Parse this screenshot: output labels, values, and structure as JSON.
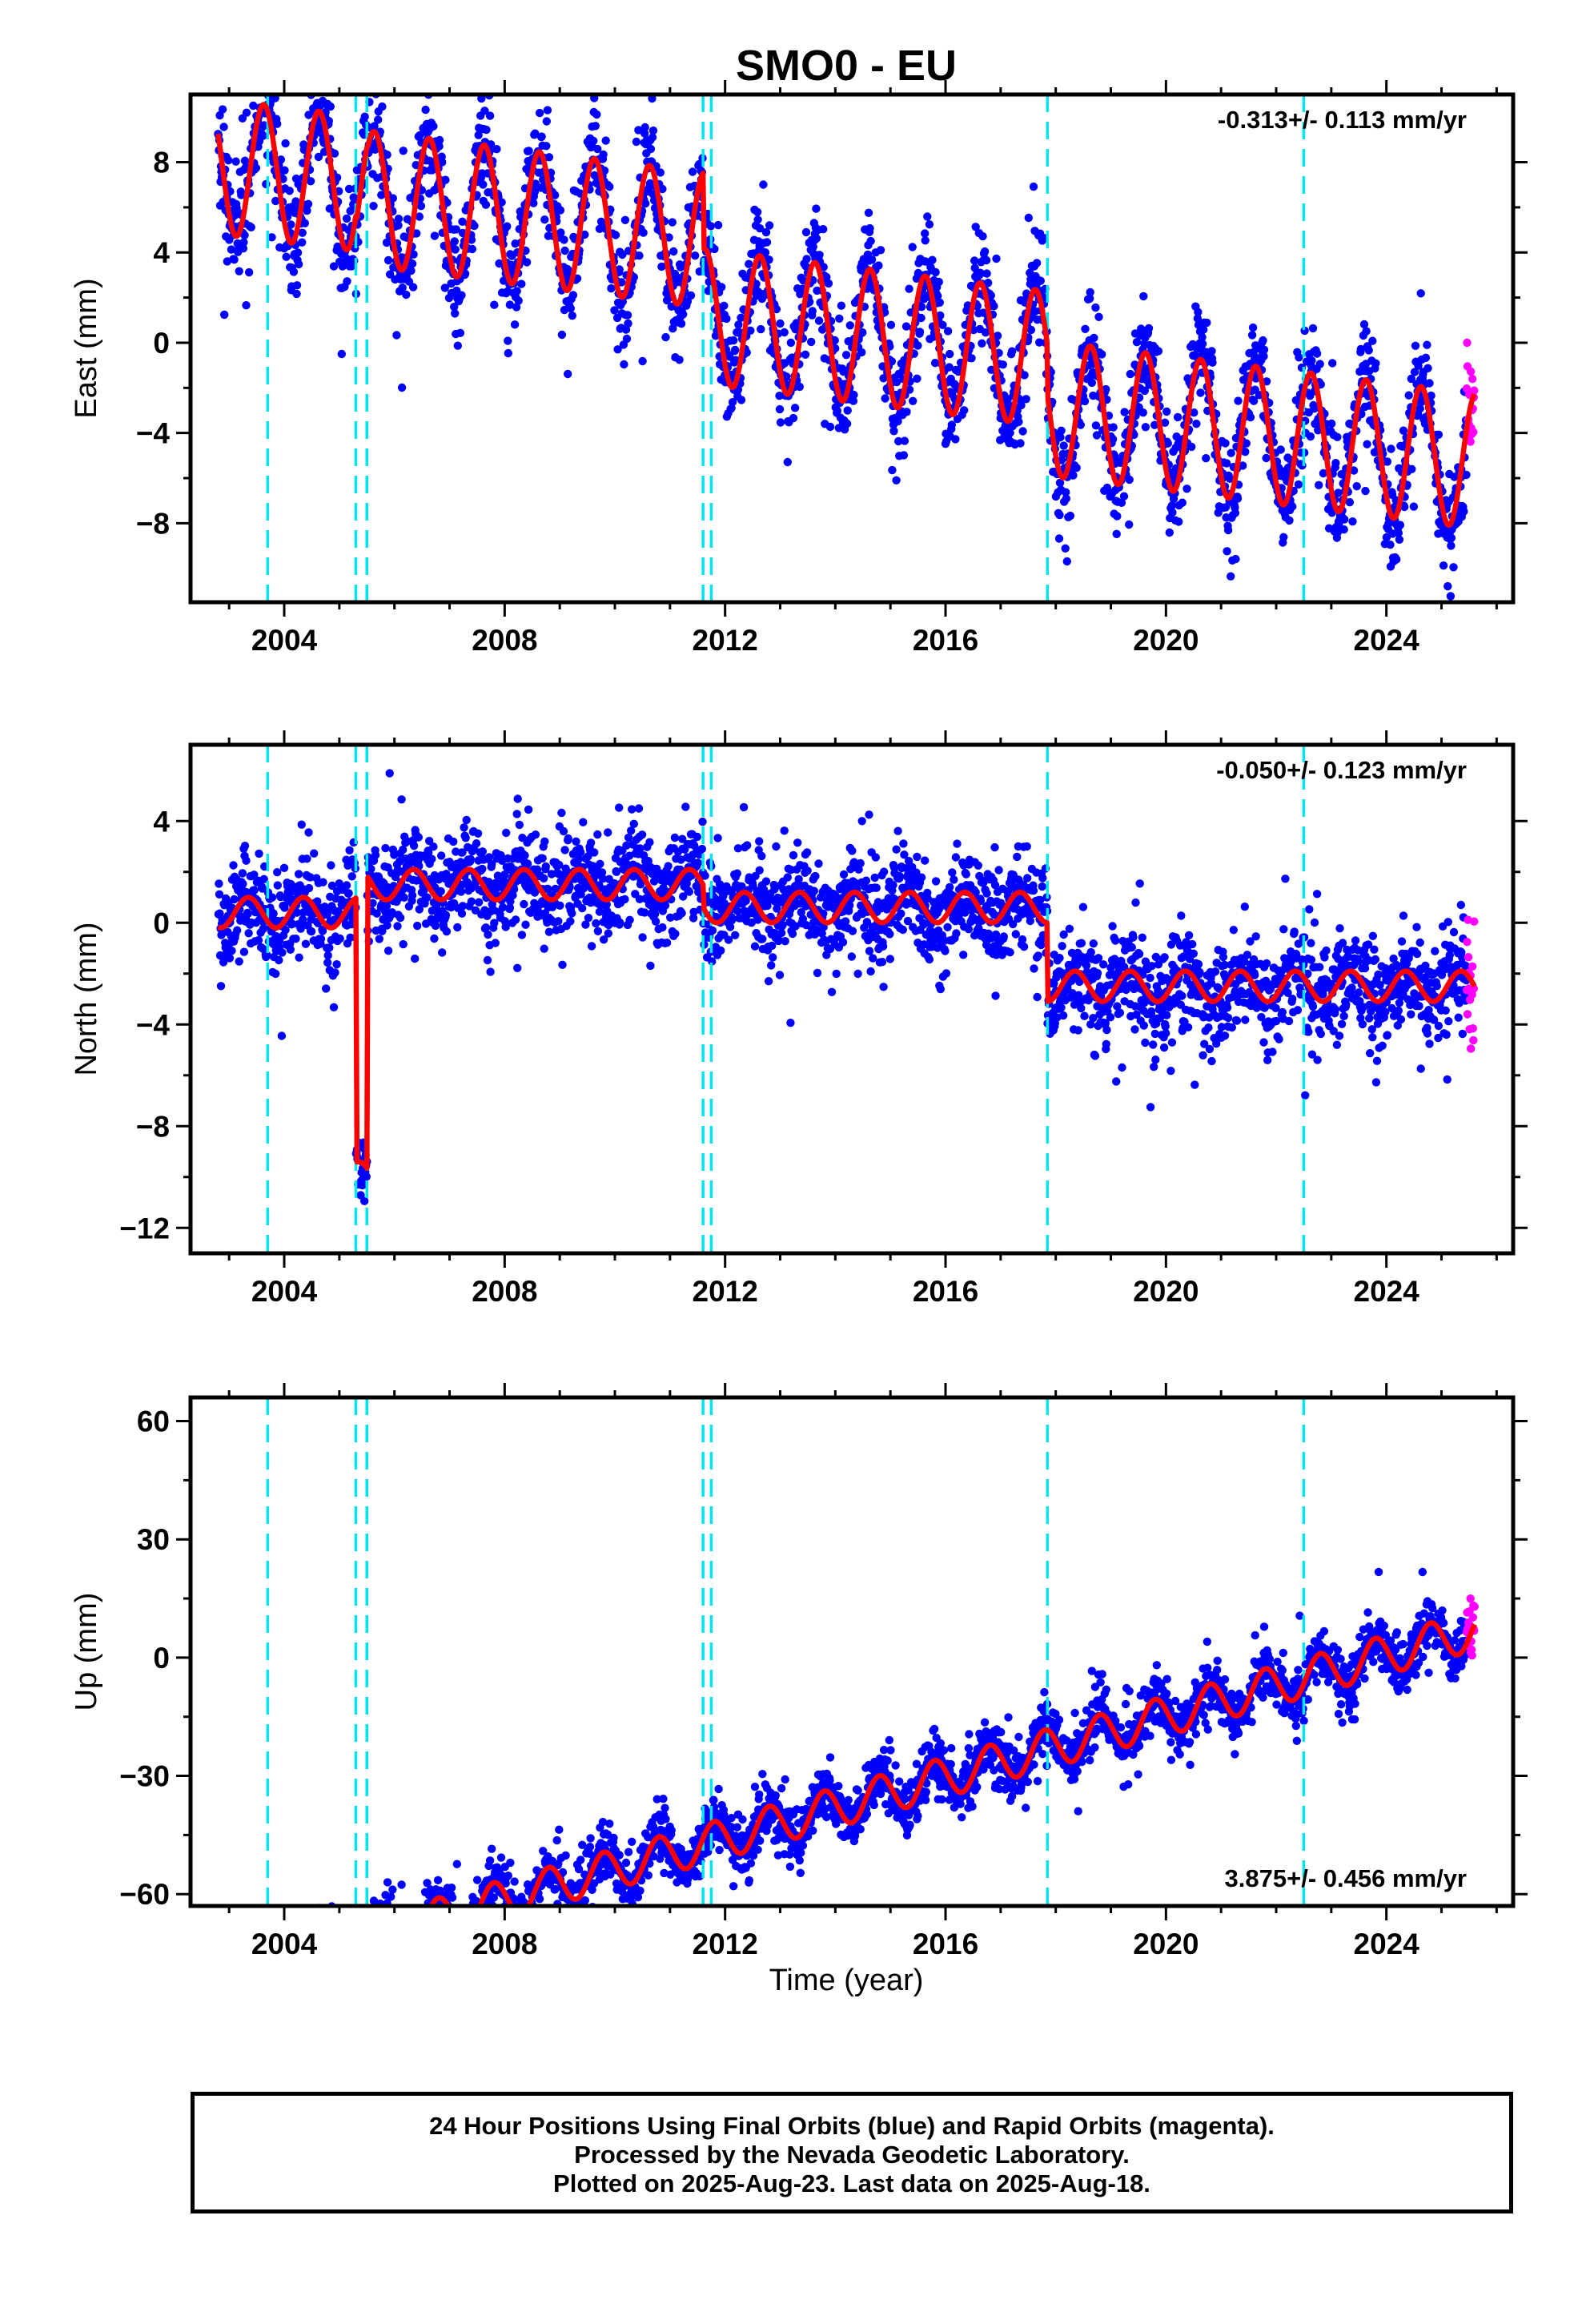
{
  "chart_data": [
    {
      "type": "scatter",
      "title": "SMO0 - EU",
      "ylabel": "East (mm)",
      "xlabel": "",
      "xlim": [
        2002.3,
        2026.3
      ],
      "ylim": [
        -11.5,
        11
      ],
      "xticks": [
        2004,
        2008,
        2012,
        2016,
        2020,
        2024
      ],
      "yticks": [
        8,
        4,
        0,
        -4,
        -8
      ],
      "ytick_labels": [
        "8",
        "4",
        "0",
        "−4",
        "−8"
      ],
      "rate": "-0.313+/- 0.113 mm/yr",
      "rate_position": "top-right",
      "grid": false,
      "colors": {
        "final": "#0000ff",
        "rapid": "#ff00ff",
        "model": "#ff0000",
        "steps": "#00e5ee"
      },
      "steps": [
        2003.7,
        2005.3,
        2005.5,
        2011.6,
        2011.75,
        2017.85,
        2022.5
      ],
      "model": {
        "start": 2002.8,
        "end": 2025.6,
        "segments": [
          {
            "start": 2002.8,
            "level": 4.6,
            "slope": -0.3
          },
          {
            "start": 2005.3,
            "level": 4.2,
            "slope": -0.3
          },
          {
            "start": 2005.5,
            "level": 4.0,
            "slope": -0.3
          },
          {
            "start": 2011.6,
            "level": 0.6,
            "slope": -0.3
          },
          {
            "start": 2017.85,
            "level": -1.6,
            "slope": -0.3
          }
        ],
        "annual_amplitude": 3.0,
        "phase": 0.38
      },
      "scatter": {
        "sigma": 1.6,
        "extra": 0.9
      }
    },
    {
      "type": "scatter",
      "title": "",
      "ylabel": "North (mm)",
      "xlabel": "",
      "xlim": [
        2002.3,
        2026.3
      ],
      "ylim": [
        -13,
        7
      ],
      "xticks": [
        2004,
        2008,
        2012,
        2016,
        2020,
        2024
      ],
      "yticks": [
        4,
        0,
        -4,
        -8,
        -12
      ],
      "ytick_labels": [
        "4",
        "0",
        "−4",
        "−8",
        "−12"
      ],
      "rate": "-0.050+/- 0.123 mm/yr",
      "rate_position": "top-right",
      "grid": false,
      "colors": {
        "final": "#0000ff",
        "rapid": "#ff00ff",
        "model": "#ff0000",
        "steps": "#00e5ee"
      },
      "steps": [
        2003.7,
        2005.3,
        2005.5,
        2011.6,
        2011.75,
        2017.85,
        2022.5
      ],
      "model": {
        "start": 2002.8,
        "end": 2025.6,
        "segments": [
          {
            "start": 2002.8,
            "level": 0.4,
            "slope": 0.0
          },
          {
            "start": 2005.3,
            "level": -10.0,
            "slope": 0.0
          },
          {
            "start": 2005.5,
            "level": 1.5,
            "slope": 0.0
          },
          {
            "start": 2011.6,
            "level": 0.6,
            "slope": 0.0
          },
          {
            "start": 2017.85,
            "level": -2.5,
            "slope": 0.0
          }
        ],
        "annual_amplitude": 0.6,
        "phase": 0.1
      },
      "scatter": {
        "sigma": 1.3,
        "extra": 0.7
      }
    },
    {
      "type": "scatter",
      "title": "",
      "ylabel": "Up (mm)",
      "xlabel": "Time (year)",
      "xlim": [
        2002.3,
        2026.3
      ],
      "ylim": [
        -63,
        66
      ],
      "xticks": [
        2004,
        2008,
        2012,
        2016,
        2020,
        2024
      ],
      "yticks": [
        60,
        30,
        0,
        -30,
        -60
      ],
      "ytick_labels": [
        "60",
        "30",
        "0",
        "−30",
        "−60"
      ],
      "rate": "3.875+/- 0.456 mm/yr",
      "rate_position": "bottom-right",
      "grid": false,
      "colors": {
        "final": "#0000ff",
        "rapid": "#ff00ff",
        "model": "#ff0000",
        "steps": "#00e5ee"
      },
      "steps": [
        2003.7,
        2005.3,
        2005.5,
        2011.6,
        2011.75,
        2017.85,
        2022.5
      ],
      "model": {
        "start": 2002.8,
        "end": 2025.6,
        "segments": [
          {
            "start": 2002.8,
            "level": -40.0,
            "slope": 3.875
          }
        ],
        "annual_amplitude": 5.0,
        "phase": 0.55
      },
      "scatter": {
        "sigma": 4.5,
        "extra": 2.5
      }
    }
  ],
  "footer": {
    "line1": "24 Hour Positions Using Final Orbits (blue) and Rapid Orbits (magenta).",
    "line2": "Processed by the Nevada Geodetic Laboratory.",
    "line3": "Plotted on 2025-Aug-23. Last data on 2025-Aug-18."
  }
}
